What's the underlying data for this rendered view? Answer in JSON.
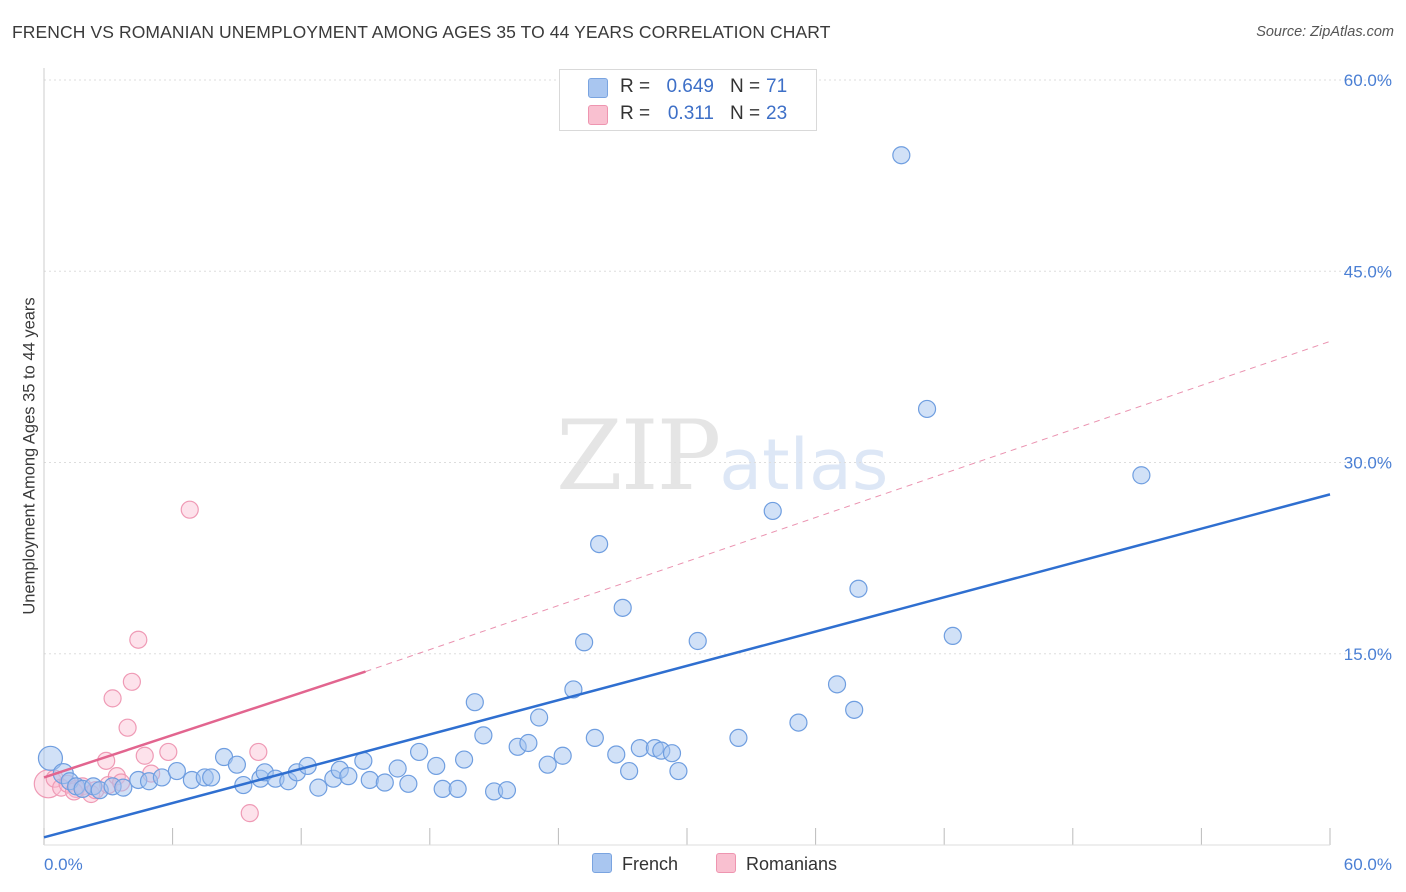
{
  "header": {
    "title": "FRENCH VS ROMANIAN UNEMPLOYMENT AMONG AGES 35 TO 44 YEARS CORRELATION CHART",
    "source": "Source: ZipAtlas.com"
  },
  "watermark": {
    "main": "ZIP",
    "sub": "atlas"
  },
  "legend": {
    "rows": [
      {
        "r_label": "R =",
        "r_value": "0.649",
        "n_label": "N =",
        "n_value": "71",
        "color": "#a9c6f0",
        "border": "#7aa4e0"
      },
      {
        "r_label": "R =",
        "r_value": "0.311",
        "n_label": "N =",
        "n_value": "23",
        "color": "#f9c0d0",
        "border": "#ee95b0"
      }
    ],
    "bottom": [
      "French",
      "Romanians"
    ]
  },
  "colors": {
    "french_fill": "rgba(164,196,240,0.5)",
    "french_stroke": "#6f9ee0",
    "romanian_fill": "rgba(250,190,210,0.45)",
    "romanian_stroke": "#ef9ab5",
    "french_line": "#2f6fd0",
    "romanian_line": "#e2658f",
    "grid": "#dddddd"
  },
  "chart_data": {
    "type": "scatter",
    "title": "FRENCH VS ROMANIAN UNEMPLOYMENT AMONG AGES 35 TO 44 YEARS CORRELATION CHART",
    "xlabel": "",
    "ylabel": "Unemployment Among Ages 35 to 44 years",
    "xlim": [
      0,
      60
    ],
    "ylim": [
      0,
      60
    ],
    "x_tick_labels": [
      "0.0%",
      "60.0%"
    ],
    "y_ticks": [
      15,
      30,
      45,
      60
    ],
    "y_tick_labels": [
      "15.0%",
      "30.0%",
      "45.0%",
      "60.0%"
    ],
    "grid": true,
    "legend_position": "top-center",
    "series": [
      {
        "name": "French",
        "r": 0.649,
        "n": 71,
        "trend": {
          "x": [
            0,
            60
          ],
          "y": [
            0.6,
            27.5
          ]
        },
        "points": [
          [
            0.3,
            6.8
          ],
          [
            0.9,
            5.6
          ],
          [
            1.2,
            5.0
          ],
          [
            1.5,
            4.6
          ],
          [
            1.8,
            4.4
          ],
          [
            2.3,
            4.6
          ],
          [
            2.6,
            4.3
          ],
          [
            3.2,
            4.6
          ],
          [
            3.7,
            4.5
          ],
          [
            4.4,
            5.1
          ],
          [
            4.9,
            5.0
          ],
          [
            5.5,
            5.3
          ],
          [
            6.2,
            5.8
          ],
          [
            6.9,
            5.1
          ],
          [
            7.5,
            5.3
          ],
          [
            7.8,
            5.3
          ],
          [
            8.4,
            6.9
          ],
          [
            9.0,
            6.3
          ],
          [
            9.3,
            4.7
          ],
          [
            10.1,
            5.2
          ],
          [
            10.3,
            5.7
          ],
          [
            10.8,
            5.2
          ],
          [
            11.4,
            5.0
          ],
          [
            11.8,
            5.7
          ],
          [
            12.3,
            6.2
          ],
          [
            12.8,
            4.5
          ],
          [
            13.5,
            5.2
          ],
          [
            13.8,
            5.9
          ],
          [
            14.2,
            5.4
          ],
          [
            14.9,
            6.6
          ],
          [
            15.2,
            5.1
          ],
          [
            15.9,
            4.9
          ],
          [
            16.5,
            6.0
          ],
          [
            17.0,
            4.8
          ],
          [
            17.5,
            7.3
          ],
          [
            18.3,
            6.2
          ],
          [
            18.6,
            4.4
          ],
          [
            19.3,
            4.4
          ],
          [
            19.6,
            6.7
          ],
          [
            20.1,
            11.2
          ],
          [
            20.5,
            8.6
          ],
          [
            21.0,
            4.2
          ],
          [
            21.6,
            4.3
          ],
          [
            22.1,
            7.7
          ],
          [
            22.6,
            8.0
          ],
          [
            23.1,
            10.0
          ],
          [
            23.5,
            6.3
          ],
          [
            24.2,
            7.0
          ],
          [
            24.7,
            12.2
          ],
          [
            25.2,
            15.9
          ],
          [
            25.7,
            8.4
          ],
          [
            25.9,
            23.6
          ],
          [
            26.7,
            7.1
          ],
          [
            27.0,
            18.6
          ],
          [
            27.3,
            5.8
          ],
          [
            27.8,
            7.6
          ],
          [
            28.5,
            7.6
          ],
          [
            28.8,
            7.4
          ],
          [
            29.3,
            7.2
          ],
          [
            29.6,
            5.8
          ],
          [
            30.5,
            16.0
          ],
          [
            32.4,
            8.4
          ],
          [
            34.0,
            26.2
          ],
          [
            35.2,
            9.6
          ],
          [
            37.0,
            12.6
          ],
          [
            37.8,
            10.6
          ],
          [
            38.0,
            20.1
          ],
          [
            40.0,
            54.1
          ],
          [
            41.2,
            34.2
          ],
          [
            42.4,
            16.4
          ],
          [
            51.2,
            29.0
          ]
        ]
      },
      {
        "name": "Romanians",
        "r": 0.311,
        "n": 23,
        "trend": {
          "x": [
            0,
            15
          ],
          "y": [
            5.3,
            13.6
          ]
        },
        "trend_extended": {
          "x": [
            15,
            60
          ],
          "y": [
            13.6,
            39.5
          ]
        },
        "points": [
          [
            0.2,
            4.8
          ],
          [
            0.5,
            5.2
          ],
          [
            0.8,
            4.5
          ],
          [
            1.1,
            4.8
          ],
          [
            1.5,
            4.4
          ],
          [
            1.8,
            4.6
          ],
          [
            2.2,
            4.0
          ],
          [
            2.4,
            4.3
          ],
          [
            2.9,
            6.6
          ],
          [
            3.0,
            4.7
          ],
          [
            3.2,
            11.5
          ],
          [
            3.4,
            5.4
          ],
          [
            3.6,
            4.9
          ],
          [
            3.9,
            9.2
          ],
          [
            4.1,
            12.8
          ],
          [
            4.4,
            16.1
          ],
          [
            4.7,
            7.0
          ],
          [
            5.0,
            5.6
          ],
          [
            5.8,
            7.3
          ],
          [
            6.8,
            26.3
          ],
          [
            9.6,
            2.5
          ],
          [
            10.0,
            7.3
          ],
          [
            1.4,
            4.2
          ]
        ]
      }
    ]
  }
}
